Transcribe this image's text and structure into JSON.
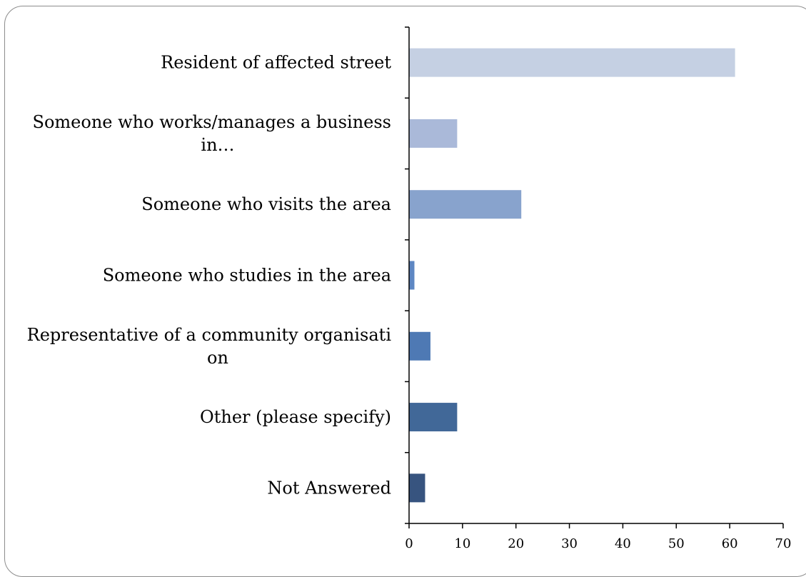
{
  "chart_data": {
    "type": "bar",
    "orientation": "horizontal",
    "categories": [
      [
        "Resident of affected street"
      ],
      [
        "Someone who works/manages a business",
        "in…"
      ],
      [
        "Someone who visits the area"
      ],
      [
        "Someone who studies in the area"
      ],
      [
        "Representative of a community organisati",
        "on"
      ],
      [
        "Other (please specify)"
      ],
      [
        "Not Answered"
      ]
    ],
    "values": [
      61,
      9,
      21,
      1,
      4,
      9,
      3
    ],
    "colors": [
      "#c5d0e3",
      "#aab9d9",
      "#88a3cd",
      "#5e87c3",
      "#4e79b4",
      "#416898",
      "#37547f"
    ],
    "xlim": [
      0,
      70
    ],
    "xticks": [
      "0",
      "10",
      "20",
      "30",
      "40",
      "50",
      "60",
      "70"
    ],
    "title": "",
    "xlabel": "",
    "ylabel": "",
    "grid": false,
    "legend": "none"
  }
}
